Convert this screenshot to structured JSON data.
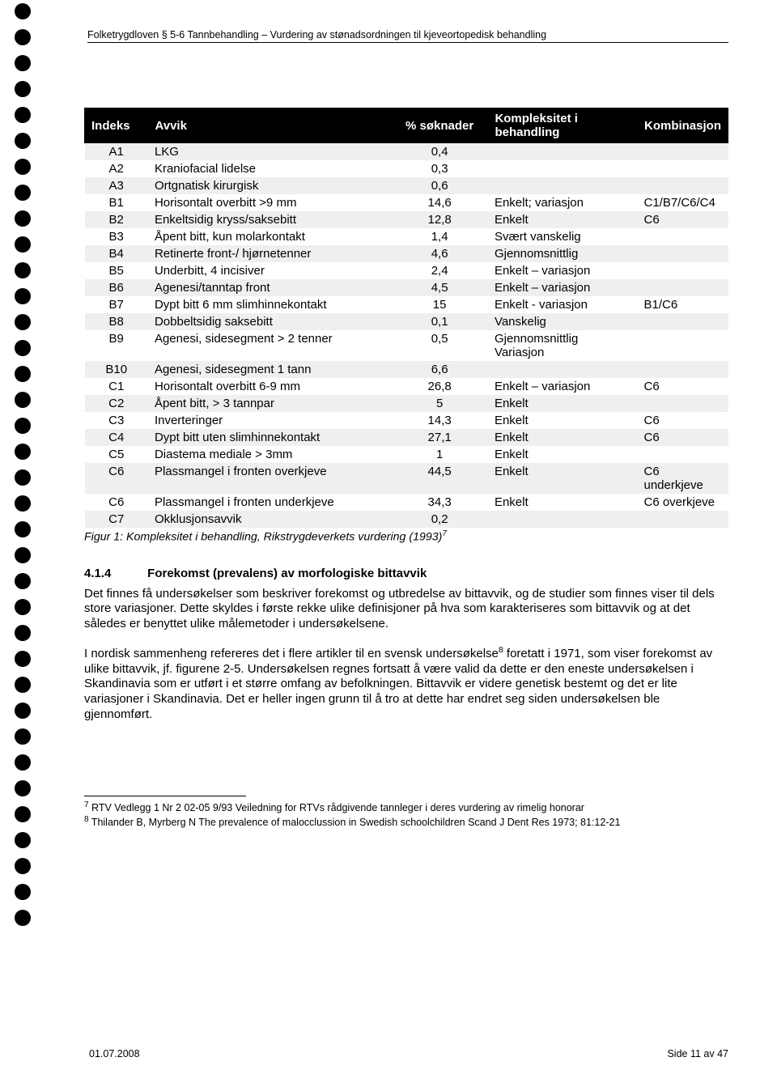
{
  "header": "Folketrygdloven § 5-6 Tannbehandling – Vurdering av stønadsordningen til kjeveortopedisk behandling",
  "table": {
    "headers": [
      "Indeks",
      "Avvik",
      "% søknader",
      "Kompleksitet i behandling",
      "Kombinasjon"
    ],
    "rows": [
      {
        "shade": true,
        "idx": "A1",
        "avvik": "LKG",
        "pct": "0,4",
        "komp": "",
        "komb": ""
      },
      {
        "shade": false,
        "idx": "A2",
        "avvik": "Kraniofacial lidelse",
        "pct": "0,3",
        "komp": "",
        "komb": ""
      },
      {
        "shade": true,
        "idx": "A3",
        "avvik": "Ortgnatisk kirurgisk",
        "pct": "0,6",
        "komp": "",
        "komb": ""
      },
      {
        "shade": false,
        "idx": "B1",
        "avvik": "Horisontalt overbitt >9 mm",
        "pct": "14,6",
        "komp": "Enkelt; variasjon",
        "komb": "C1/B7/C6/C4"
      },
      {
        "shade": true,
        "idx": "B2",
        "avvik": "Enkeltsidig kryss/saksebitt",
        "pct": "12,8",
        "komp": "Enkelt",
        "komb": "C6"
      },
      {
        "shade": false,
        "idx": "B3",
        "avvik": "Åpent bitt, kun molarkontakt",
        "pct": "1,4",
        "komp": "Svært vanskelig",
        "komb": ""
      },
      {
        "shade": true,
        "idx": "B4",
        "avvik": "Retinerte front-/ hjørnetenner",
        "pct": "4,6",
        "komp": "Gjennomsnittlig",
        "komb": ""
      },
      {
        "shade": false,
        "idx": "B5",
        "avvik": "Underbitt, 4 incisiver",
        "pct": "2,4",
        "komp": "Enkelt – variasjon",
        "komb": ""
      },
      {
        "shade": true,
        "idx": "B6",
        "avvik": "Agenesi/tanntap front",
        "pct": "4,5",
        "komp": "Enkelt – variasjon",
        "komb": ""
      },
      {
        "shade": false,
        "idx": "B7",
        "avvik": "Dypt bitt 6 mm slimhinnekontakt",
        "pct": "15",
        "komp": "Enkelt - variasjon",
        "komb": "B1/C6"
      },
      {
        "shade": true,
        "idx": "B8",
        "avvik": "Dobbeltsidig saksebitt",
        "pct": "0,1",
        "komp": "Vanskelig",
        "komb": ""
      },
      {
        "shade": false,
        "idx": "B9",
        "avvik": "Agenesi, sidesegment > 2 tenner",
        "pct": "0,5",
        "komp": "Gjennomsnittlig Variasjon",
        "komb": ""
      },
      {
        "shade": true,
        "idx": "B10",
        "avvik": "Agenesi, sidesegment 1 tann",
        "pct": "6,6",
        "komp": "",
        "komb": ""
      },
      {
        "shade": false,
        "idx": "C1",
        "avvik": "Horisontalt overbitt 6-9 mm",
        "pct": "26,8",
        "komp": "Enkelt – variasjon",
        "komb": "C6"
      },
      {
        "shade": true,
        "idx": "C2",
        "avvik": "Åpent bitt, > 3 tannpar",
        "pct": "5",
        "komp": "Enkelt",
        "komb": ""
      },
      {
        "shade": false,
        "idx": "C3",
        "avvik": "Inverteringer",
        "pct": "14,3",
        "komp": "Enkelt",
        "komb": "C6"
      },
      {
        "shade": true,
        "idx": "C4",
        "avvik": "Dypt bitt uten slimhinnekontakt",
        "pct": "27,1",
        "komp": "Enkelt",
        "komb": "C6"
      },
      {
        "shade": false,
        "idx": "C5",
        "avvik": "Diastema mediale > 3mm",
        "pct": "1",
        "komp": "Enkelt",
        "komb": ""
      },
      {
        "shade": true,
        "idx": "C6",
        "avvik": "Plassmangel i fronten overkjeve",
        "pct": "44,5",
        "komp": "Enkelt",
        "komb": "C6 underkjeve"
      },
      {
        "shade": false,
        "idx": "C6",
        "avvik": "Plassmangel i fronten underkjeve",
        "pct": "34,3",
        "komp": "Enkelt",
        "komb": "C6 overkjeve"
      },
      {
        "shade": true,
        "idx": "C7",
        "avvik": "Okklusjonsavvik",
        "pct": "0,2",
        "komp": "",
        "komb": ""
      }
    ]
  },
  "figure_caption_pre": "Figur 1: Kompleksitet i behandling, Rikstrygdeverkets vurdering (1993)",
  "figure_caption_sup": "7",
  "section": {
    "number": "4.1.4",
    "title": "Forekomst (prevalens) av morfologiske bittavvik"
  },
  "paragraph1": "Det finnes få undersøkelser som beskriver forekomst og utbredelse av bittavvik, og de studier som finnes viser til dels store variasjoner. Dette skyldes i første rekke ulike definisjoner på hva som karakteriseres som bittavvik og at det således er benyttet ulike målemetoder i undersøkelsene.",
  "paragraph2_a": "I nordisk sammenheng refereres det i flere artikler til en svensk undersøkelse",
  "paragraph2_sup": "8",
  "paragraph2_b": " foretatt i 1971, som viser forekomst av ulike bittavvik, jf. figurene 2-5. Undersøkelsen regnes fortsatt å være valid da dette er den eneste undersøkelsen i Skandinavia som er utført i et større omfang av befolkningen. Bittavvik er videre genetisk bestemt og det er lite variasjoner i Skandinavia. Det er heller ingen grunn til å tro at dette har endret seg siden undersøkelsen ble gjennomført.",
  "footnote7_sup": "7",
  "footnote7": " RTV Vedlegg 1 Nr 2 02-05 9/93 Veiledning for RTVs rådgivende tannleger i deres vurdering av rimelig honorar",
  "footnote8_sup": "8",
  "footnote8": " Thilander B, Myrberg N The prevalence of malocclussion in Swedish schoolchildren Scand J Dent Res 1973; 81:12-21",
  "footer_left": "01.07.2008",
  "footer_right": "Side 11 av 47",
  "dot_count": 36
}
